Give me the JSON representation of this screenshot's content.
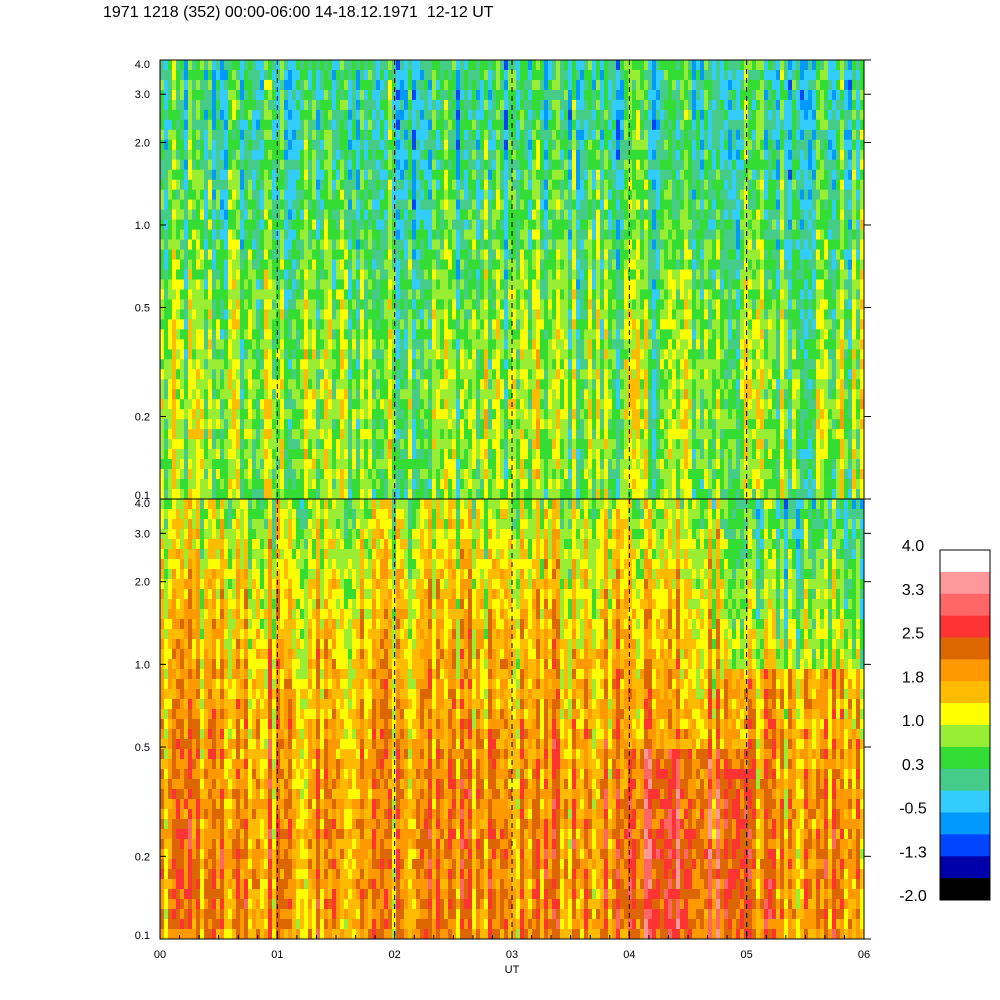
{
  "title": "1971 1218 (352) 00:00-06:00 14-18.12.1971  12-12 UT",
  "chart_data": {
    "type": "heatmap",
    "title": "1971 1218 (352) 00:00-06:00 14-18.12.1971  12-12 UT",
    "xlabel": "UT",
    "ylabel": "",
    "x_range": [
      0,
      6
    ],
    "x_ticks": [
      "00",
      "01",
      "02",
      "03",
      "04",
      "05",
      "06"
    ],
    "y_scale": "log",
    "y_range": [
      0.1,
      4.0
    ],
    "panels": [
      {
        "y_ticks": [
          {
            "value": 4.0,
            "label": "4.0"
          },
          {
            "value": 3.0,
            "label": "3.0"
          },
          {
            "value": 2.0,
            "label": "2.0"
          },
          {
            "value": 1.0,
            "label": "1.0"
          },
          {
            "value": 0.5,
            "label": "0.5"
          },
          {
            "value": 0.2,
            "label": "0.2"
          },
          {
            "value": 0.1,
            "label": "0.1"
          }
        ],
        "level_profile": [
          {
            "y": 0.1,
            "level": 0.6
          },
          {
            "y": 0.2,
            "level": 0.8
          },
          {
            "y": 0.5,
            "level": 0.6
          },
          {
            "y": 1.0,
            "level": 0.3
          },
          {
            "y": 2.0,
            "level": 0.1
          },
          {
            "y": 4.0,
            "level": 0.1
          }
        ]
      },
      {
        "y_ticks": [
          {
            "value": 4.0,
            "label": "4.0"
          },
          {
            "value": 3.0,
            "label": "3.0"
          },
          {
            "value": 2.0,
            "label": "2.0"
          },
          {
            "value": 1.0,
            "label": "1.0"
          },
          {
            "value": 0.5,
            "label": "0.5"
          },
          {
            "value": 0.2,
            "label": "0.2"
          },
          {
            "value": 0.1,
            "label": "0.1"
          }
        ],
        "level_profile": [
          {
            "y": 0.1,
            "level": 1.9
          },
          {
            "y": 0.2,
            "level": 2.0
          },
          {
            "y": 0.5,
            "level": 1.8
          },
          {
            "y": 1.0,
            "level": 1.6
          },
          {
            "y": 2.0,
            "level": 1.3
          },
          {
            "y": 4.0,
            "level": 0.8
          }
        ]
      }
    ],
    "vertical_dashed_lines_at": [
      1,
      2,
      3,
      4,
      5,
      6
    ],
    "color_scale": {
      "labels": [
        "4.0",
        "3.3",
        "2.5",
        "1.8",
        "1.0",
        "0.3",
        "-0.5",
        "-1.3",
        "-2.0"
      ],
      "min": -2.0,
      "max": 4.0,
      "colors": [
        "#000000",
        "#0000aa",
        "#0044ff",
        "#0099ff",
        "#33ccff",
        "#44cc88",
        "#33dd33",
        "#99ee33",
        "#ffff00",
        "#ffbb00",
        "#ff9900",
        "#dd6600",
        "#ff3333",
        "#ff6666",
        "#ff9999",
        "#ffffff"
      ]
    }
  }
}
